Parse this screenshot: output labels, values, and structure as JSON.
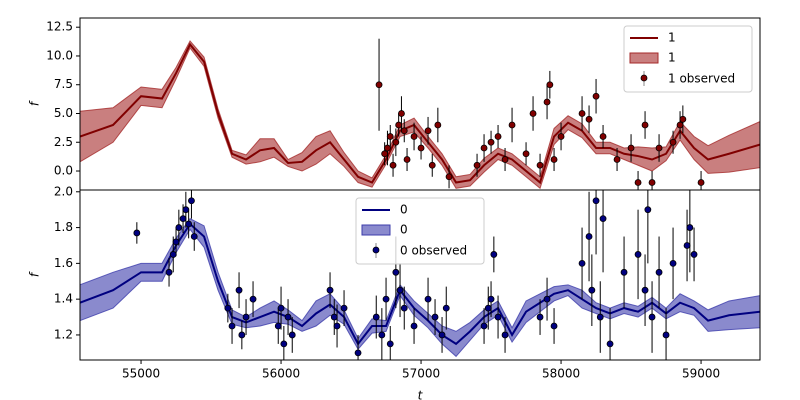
{
  "chart_data": [
    {
      "type": "line",
      "ylabel": "f",
      "legend": "upper right",
      "x": [
        54564,
        54800,
        55000,
        55150,
        55250,
        55350,
        55450,
        55550,
        55650,
        55750,
        55850,
        55950,
        56050,
        56150,
        56250,
        56350,
        56450,
        56550,
        56650,
        56750,
        56850,
        56950,
        57050,
        57150,
        57250,
        57350,
        57450,
        57550,
        57650,
        57750,
        57850,
        57950,
        58050,
        58150,
        58250,
        58350,
        58450,
        58550,
        58650,
        58750,
        58850,
        58950,
        59050,
        59200,
        59421
      ],
      "series": [
        {
          "name": "1",
          "color": "#800000",
          "values": [
            3.0,
            4.0,
            6.5,
            6.3,
            8.5,
            11.0,
            9.5,
            5.0,
            1.5,
            1.0,
            1.8,
            2.0,
            0.7,
            0.8,
            1.8,
            2.5,
            1.0,
            -0.5,
            -1.0,
            1.0,
            3.5,
            4.0,
            2.5,
            1.0,
            -1.0,
            -0.8,
            0.5,
            1.5,
            1.0,
            0.0,
            -1.0,
            3.0,
            4.2,
            3.5,
            2.0,
            2.0,
            1.5,
            1.3,
            1.0,
            1.5,
            3.5,
            2.0,
            1.0,
            1.5,
            2.3
          ]
        }
      ],
      "band": {
        "name": "1",
        "color": "#a52a2a",
        "lower": [
          0.8,
          2.5,
          5.7,
          5.5,
          8.0,
          10.7,
          9.1,
          4.6,
          1.2,
          0.6,
          0.8,
          1.2,
          0.4,
          0.0,
          0.6,
          1.5,
          0.4,
          -1.0,
          -1.4,
          0.6,
          3.0,
          3.4,
          2.0,
          0.5,
          -1.5,
          -1.3,
          -0.1,
          1.0,
          0.5,
          -0.5,
          -1.5,
          2.3,
          3.6,
          2.9,
          1.5,
          1.5,
          1.0,
          0.5,
          0.0,
          0.9,
          2.7,
          1.0,
          -0.2,
          -0.1,
          0.3
        ],
        "upper": [
          5.2,
          5.5,
          7.3,
          7.1,
          9.0,
          11.3,
          9.9,
          5.4,
          1.8,
          1.4,
          2.8,
          2.8,
          1.0,
          1.6,
          3.0,
          3.5,
          1.6,
          0.0,
          -0.6,
          1.4,
          4.0,
          4.6,
          3.0,
          1.5,
          -0.5,
          -0.3,
          1.1,
          2.0,
          1.5,
          0.5,
          -0.5,
          3.7,
          4.8,
          4.1,
          2.5,
          2.5,
          2.0,
          2.1,
          2.0,
          2.1,
          4.3,
          3.0,
          2.2,
          3.1,
          4.3
        ]
      },
      "observed": {
        "name": "1 observed",
        "color": "#800000",
        "x": [
          56700,
          56740,
          56760,
          56780,
          56800,
          56820,
          56840,
          56860,
          56880,
          56900,
          56950,
          57000,
          57050,
          57080,
          57120,
          57200,
          57400,
          57450,
          57500,
          57550,
          57600,
          57650,
          57750,
          57800,
          57850,
          57900,
          57920,
          57950,
          58000,
          58150,
          58200,
          58250,
          58300,
          58400,
          58500,
          58550,
          58600,
          58650,
          58700,
          58800,
          58850,
          58870,
          59000
        ],
        "values": [
          7.5,
          1.5,
          2.0,
          3.0,
          0.5,
          2.5,
          4.0,
          5.0,
          3.5,
          1.0,
          3.0,
          2.0,
          3.5,
          0.5,
          4.0,
          -0.5,
          0.5,
          2.0,
          2.5,
          3.0,
          1.0,
          4.0,
          1.5,
          5.0,
          0.5,
          6.0,
          7.5,
          1.0,
          3.0,
          5.0,
          4.5,
          6.5,
          3.0,
          1.0,
          2.0,
          -1.0,
          4.0,
          -1.0,
          2.0,
          2.5,
          4.0,
          4.5,
          -1.0
        ],
        "errors": [
          4.0,
          1.0,
          1.5,
          1.0,
          1.0,
          1.2,
          1.0,
          1.5,
          1.0,
          1.0,
          1.2,
          1.0,
          1.2,
          1.0,
          1.5,
          1.0,
          1.0,
          1.2,
          1.0,
          1.0,
          1.0,
          1.5,
          1.0,
          1.5,
          1.0,
          1.5,
          1.2,
          1.0,
          1.2,
          1.5,
          1.2,
          1.5,
          1.0,
          1.0,
          1.2,
          1.0,
          1.2,
          1.0,
          1.2,
          1.0,
          1.2,
          1.2,
          1.0
        ]
      },
      "xlim": [
        54564,
        59421
      ],
      "ylim": [
        -1.65,
        13.3
      ],
      "yticks": [
        {
          "value": 0,
          "label": "0.0"
        },
        2.5,
        {
          "value": 5,
          "label": "5.0"
        },
        7.5,
        {
          "value": 10,
          "label": "10.0"
        },
        12.5
      ]
    },
    {
      "type": "line",
      "ylabel": "f",
      "xlabel": "t",
      "legend": "upper center",
      "x": [
        54564,
        54800,
        55000,
        55150,
        55250,
        55350,
        55450,
        55550,
        55650,
        55750,
        55850,
        55950,
        56050,
        56150,
        56250,
        56350,
        56450,
        56550,
        56650,
        56750,
        56850,
        56950,
        57050,
        57150,
        57250,
        57350,
        57450,
        57550,
        57650,
        57750,
        57850,
        57950,
        58050,
        58150,
        58250,
        58350,
        58450,
        58550,
        58650,
        58750,
        58850,
        58950,
        59050,
        59200,
        59421
      ],
      "series": [
        {
          "name": "0",
          "color": "#000080",
          "values": [
            1.38,
            1.45,
            1.55,
            1.55,
            1.7,
            1.82,
            1.75,
            1.5,
            1.3,
            1.27,
            1.3,
            1.33,
            1.3,
            1.25,
            1.32,
            1.37,
            1.3,
            1.15,
            1.25,
            1.25,
            1.45,
            1.35,
            1.28,
            1.2,
            1.15,
            1.22,
            1.3,
            1.35,
            1.2,
            1.33,
            1.38,
            1.43,
            1.45,
            1.4,
            1.35,
            1.32,
            1.35,
            1.33,
            1.38,
            1.32,
            1.38,
            1.35,
            1.28,
            1.31,
            1.33
          ]
        }
      ],
      "band": {
        "name": "0",
        "color": "#3c3cab",
        "lower": [
          1.28,
          1.35,
          1.5,
          1.5,
          1.66,
          1.79,
          1.69,
          1.45,
          1.26,
          1.24,
          1.25,
          1.27,
          1.26,
          1.22,
          1.25,
          1.31,
          1.26,
          1.12,
          1.21,
          1.22,
          1.42,
          1.31,
          1.24,
          1.15,
          1.08,
          1.17,
          1.26,
          1.31,
          1.16,
          1.27,
          1.33,
          1.39,
          1.42,
          1.35,
          1.32,
          1.29,
          1.32,
          1.3,
          1.35,
          1.29,
          1.33,
          1.31,
          1.22,
          1.23,
          1.24
        ],
        "upper": [
          1.48,
          1.55,
          1.6,
          1.6,
          1.74,
          1.85,
          1.81,
          1.55,
          1.34,
          1.3,
          1.35,
          1.39,
          1.34,
          1.28,
          1.39,
          1.43,
          1.34,
          1.18,
          1.29,
          1.28,
          1.48,
          1.39,
          1.32,
          1.25,
          1.22,
          1.27,
          1.34,
          1.39,
          1.24,
          1.39,
          1.43,
          1.47,
          1.48,
          1.45,
          1.38,
          1.35,
          1.38,
          1.36,
          1.41,
          1.35,
          1.43,
          1.39,
          1.34,
          1.39,
          1.42
        ]
      },
      "observed": {
        "name": "0 observed",
        "color": "#000080",
        "x": [
          54970,
          55200,
          55230,
          55250,
          55270,
          55300,
          55320,
          55340,
          55360,
          55380,
          55620,
          55650,
          55700,
          55720,
          55750,
          55800,
          55980,
          56000,
          56020,
          56050,
          56080,
          56350,
          56380,
          56400,
          56450,
          56550,
          56680,
          56720,
          56750,
          56780,
          56820,
          56850,
          56880,
          56950,
          57050,
          57100,
          57150,
          57180,
          57450,
          57480,
          57500,
          57520,
          57550,
          57600,
          57850,
          57900,
          57950,
          58150,
          58200,
          58220,
          58250,
          58280,
          58300,
          58350,
          58450,
          58550,
          58600,
          58620,
          58650,
          58700,
          58750,
          58800,
          58900,
          58920,
          58950
        ],
        "values": [
          1.77,
          1.55,
          1.65,
          1.72,
          1.8,
          1.85,
          1.9,
          1.82,
          1.95,
          1.75,
          1.35,
          1.25,
          1.45,
          1.2,
          1.3,
          1.4,
          1.25,
          1.35,
          1.15,
          1.3,
          1.2,
          1.45,
          1.3,
          1.25,
          1.35,
          1.1,
          1.3,
          1.2,
          1.4,
          1.15,
          1.55,
          1.45,
          1.35,
          1.25,
          1.4,
          1.3,
          1.2,
          1.35,
          1.25,
          1.35,
          1.4,
          1.65,
          1.3,
          1.2,
          1.3,
          1.4,
          1.25,
          1.6,
          1.75,
          1.45,
          1.95,
          1.3,
          1.85,
          1.15,
          1.55,
          1.65,
          1.45,
          1.9,
          1.3,
          1.55,
          1.2,
          1.6,
          1.7,
          1.8,
          1.65
        ],
        "errors": [
          0.06,
          0.08,
          0.1,
          0.08,
          0.1,
          0.08,
          0.1,
          0.08,
          0.1,
          0.08,
          0.08,
          0.1,
          0.1,
          0.08,
          0.1,
          0.1,
          0.1,
          0.12,
          0.1,
          0.1,
          0.1,
          0.1,
          0.1,
          0.12,
          0.1,
          0.1,
          0.12,
          0.15,
          0.12,
          0.1,
          0.2,
          0.15,
          0.12,
          0.1,
          0.12,
          0.1,
          0.1,
          0.12,
          0.1,
          0.12,
          0.1,
          0.1,
          0.12,
          0.1,
          0.1,
          0.12,
          0.1,
          0.2,
          0.25,
          0.2,
          0.3,
          0.2,
          0.3,
          0.2,
          0.2,
          0.25,
          0.2,
          0.3,
          0.2,
          0.2,
          0.15,
          0.2,
          0.2,
          0.25,
          0.15
        ]
      },
      "xlim": [
        54564,
        59421
      ],
      "ylim": [
        1.06,
        2.01
      ],
      "xticks": [
        55000,
        56000,
        57000,
        58000,
        59000
      ],
      "yticks": [
        1.2,
        1.4,
        1.6,
        1.8,
        {
          "value": 2,
          "label": "2.0"
        }
      ]
    }
  ]
}
